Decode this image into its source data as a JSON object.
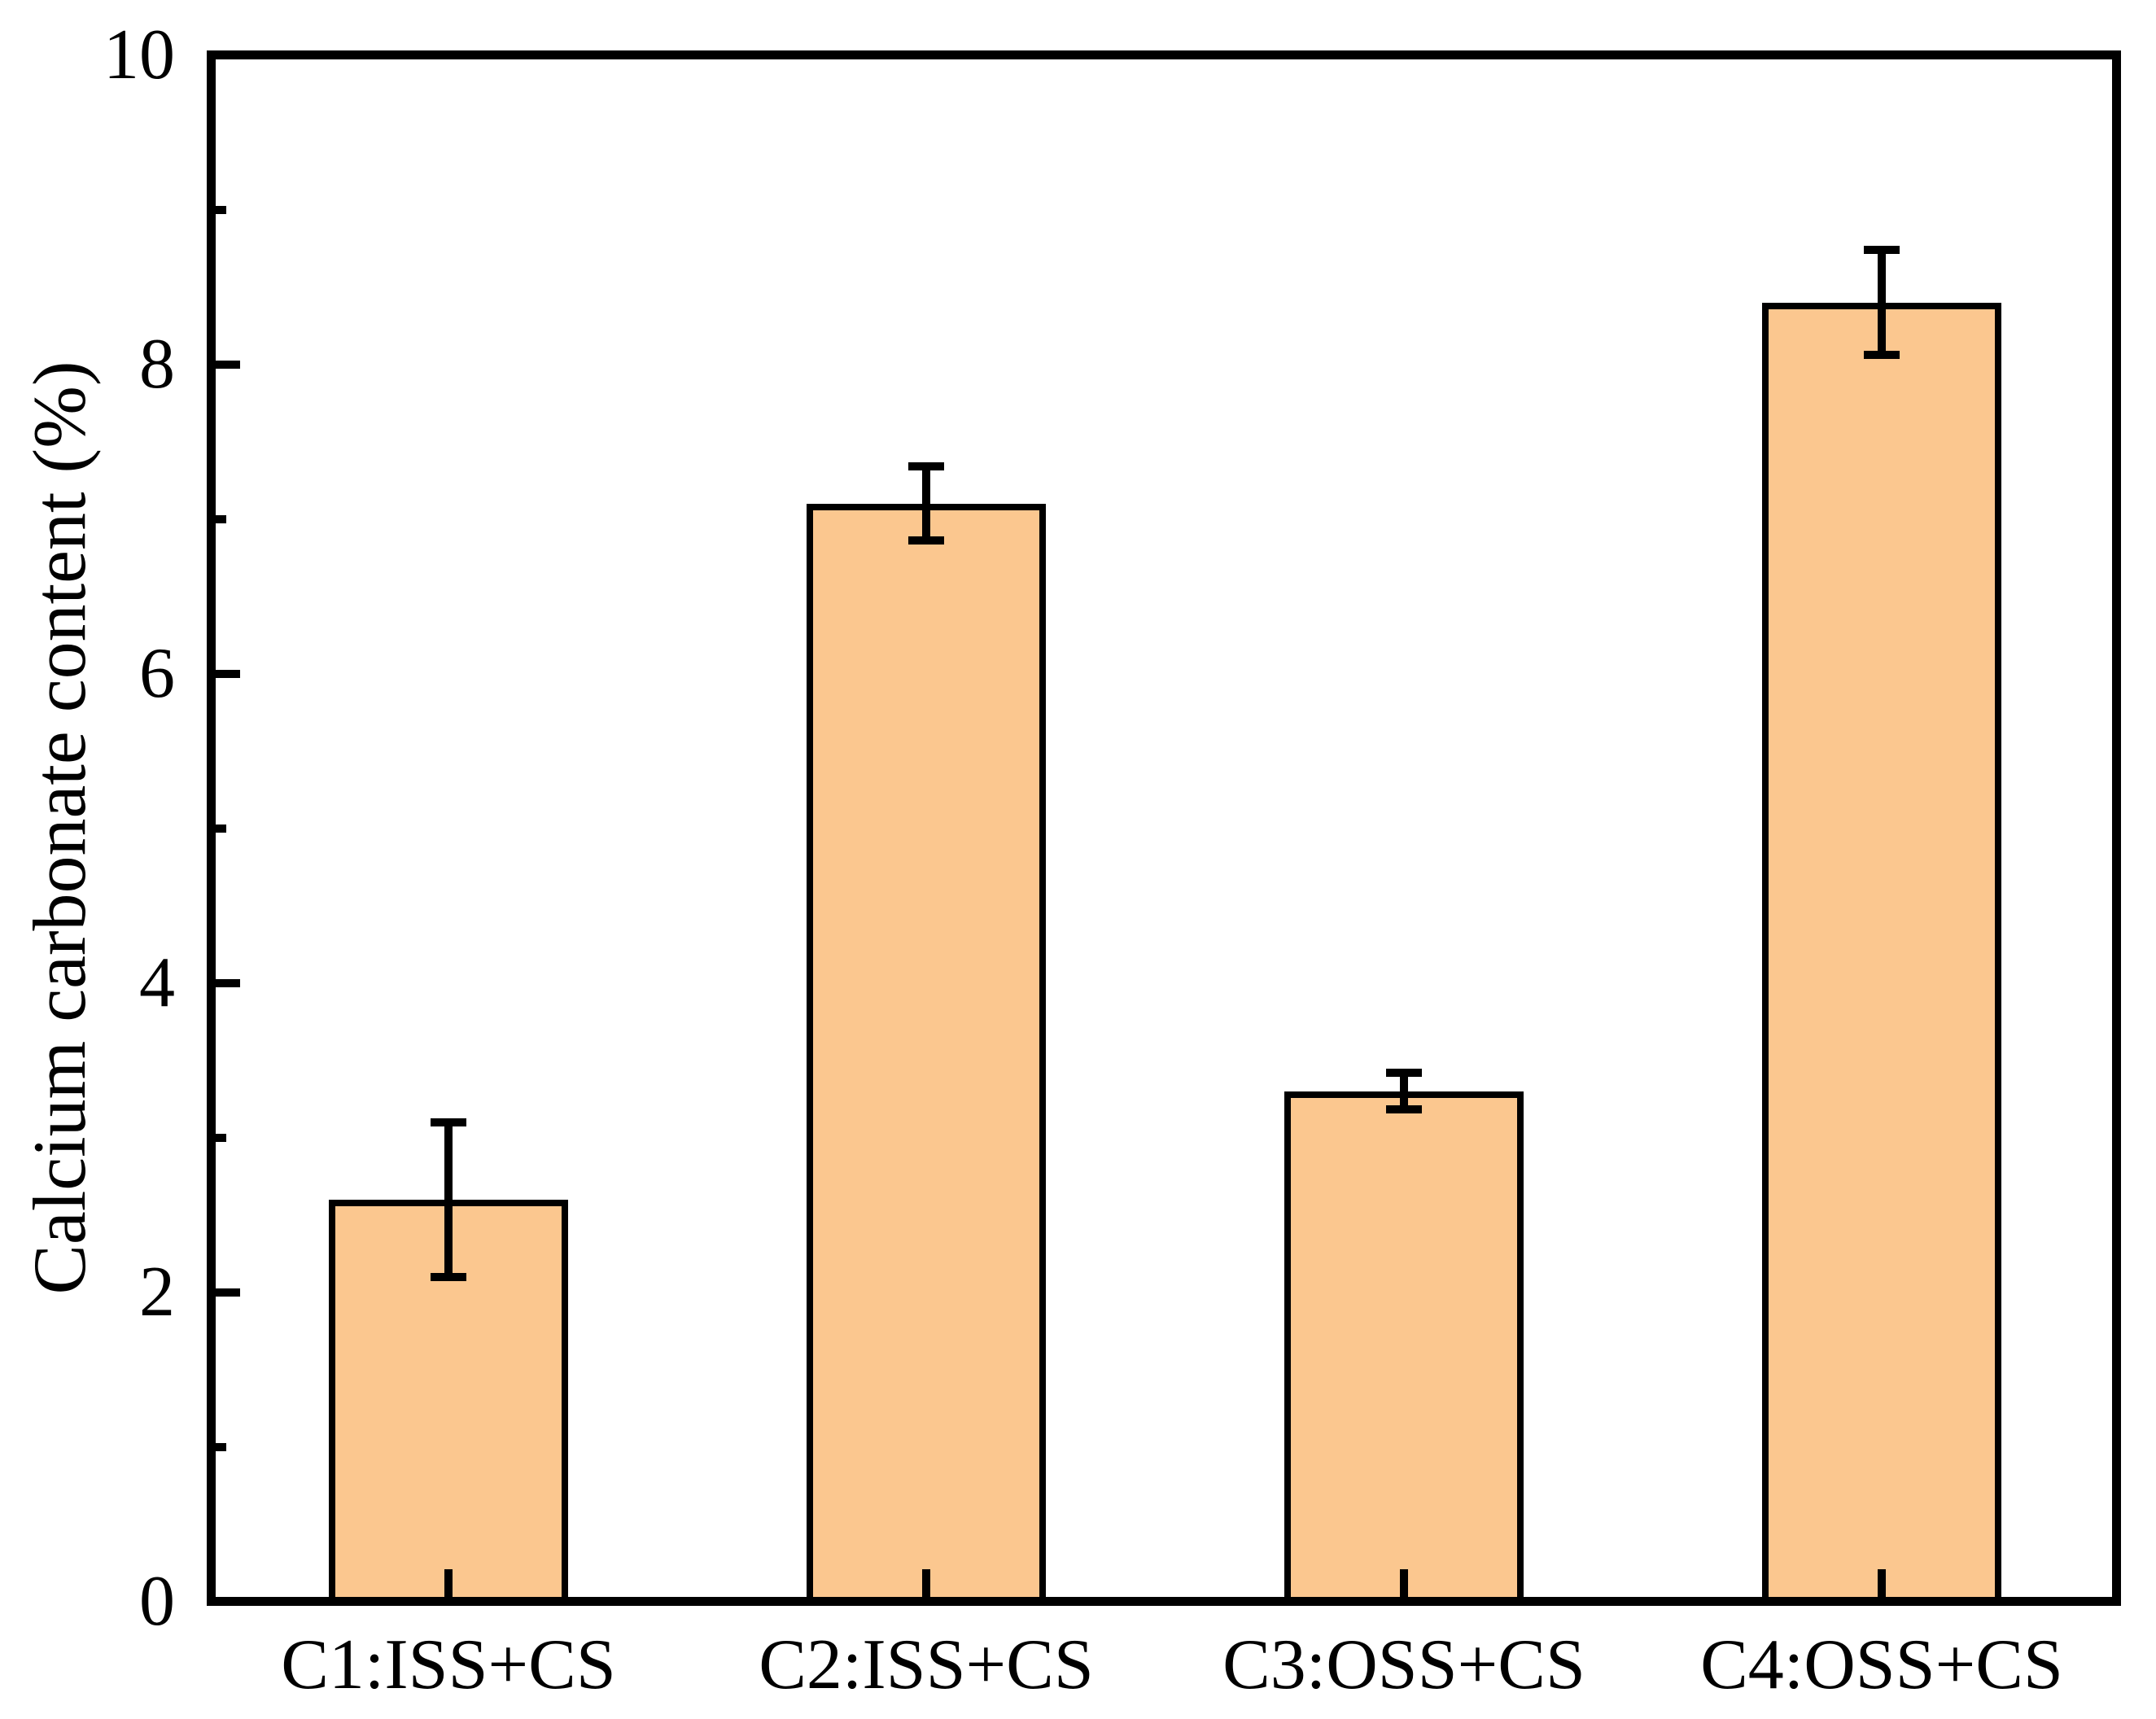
{
  "chart_data": {
    "type": "bar",
    "title": "",
    "xlabel": "",
    "ylabel": "Calcium carbonate content (%)",
    "categories": [
      "C1:ISS+CS",
      "C2:ISS+CS",
      "C3:OSS+CS",
      "C4:OSS+CS"
    ],
    "values": [
      2.6,
      7.1,
      3.3,
      8.4
    ],
    "errors": [
      0.5,
      0.24,
      0.12,
      0.34
    ],
    "ylim": [
      0,
      10
    ],
    "y_major_ticks": [
      0,
      2,
      4,
      6,
      8,
      10
    ],
    "y_minor_ticks": [
      1,
      3,
      5,
      7,
      9
    ],
    "grid": "off",
    "legend": "none",
    "bar_fill": "#FBC78F",
    "bar_border": "#000000",
    "axis_color": "#000000",
    "background": "#FFFFFF"
  }
}
